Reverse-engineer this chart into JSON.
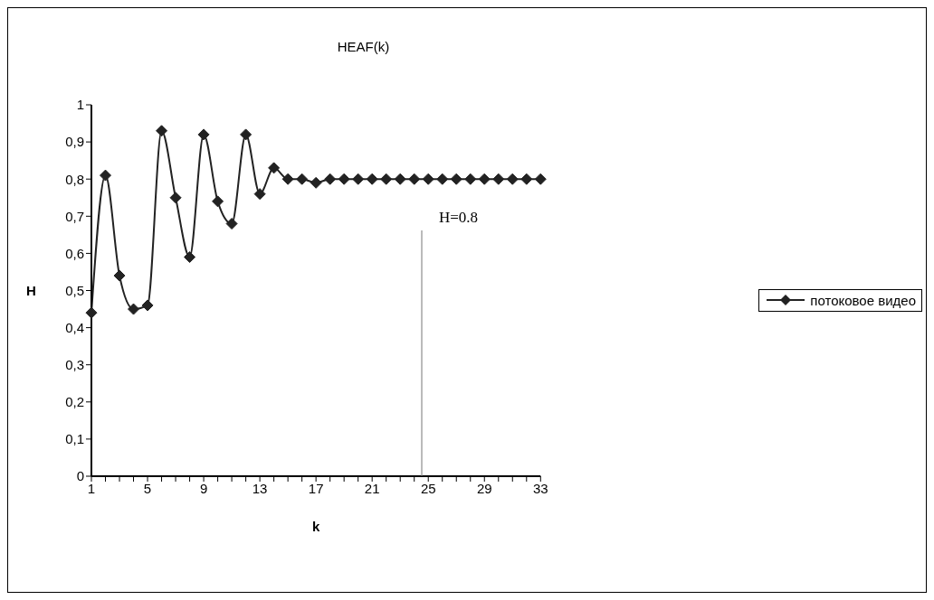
{
  "chart_data": {
    "type": "line",
    "title": "HEAF(k)",
    "xlabel": "k",
    "ylabel": "H",
    "categories": [
      "1",
      null,
      null,
      null,
      "5",
      null,
      null,
      null,
      "9",
      null,
      null,
      null,
      "13",
      null,
      null,
      null,
      "17",
      null,
      null,
      null,
      "21",
      null,
      null,
      null,
      "25",
      null,
      null,
      null,
      "29",
      null,
      null,
      null,
      "33"
    ],
    "series": [
      {
        "name": "потоковое видео",
        "color": "#222222",
        "values": [
          0.44,
          0.81,
          0.54,
          0.45,
          0.46,
          0.93,
          0.75,
          0.59,
          0.92,
          0.74,
          0.68,
          0.92,
          0.76,
          0.83,
          0.8,
          0.8,
          0.79,
          0.8,
          0.8,
          0.8,
          0.8,
          0.8,
          0.8,
          0.8,
          0.8,
          0.8,
          0.8,
          0.8,
          0.8,
          0.8,
          0.8,
          0.8,
          0.8
        ]
      }
    ],
    "ylim": [
      0,
      1
    ],
    "yticks": [
      0,
      {
        "value": 0.1,
        "label": "0,1"
      },
      {
        "value": 0.2,
        "label": "0,2"
      },
      {
        "value": 0.3,
        "label": "0,3"
      },
      {
        "value": 0.4,
        "label": "0,4"
      },
      {
        "value": 0.5,
        "label": "0,5"
      },
      {
        "value": 0.6,
        "label": "0,6"
      },
      {
        "value": 0.7,
        "label": "0,7"
      },
      {
        "value": 0.8,
        "label": "0,8"
      },
      {
        "value": 0.9,
        "label": "0,9"
      },
      1
    ],
    "annotations": [
      "H=0.8"
    ],
    "grid": false,
    "legend": "right",
    "marker": "diamond",
    "line_style": "solid"
  }
}
